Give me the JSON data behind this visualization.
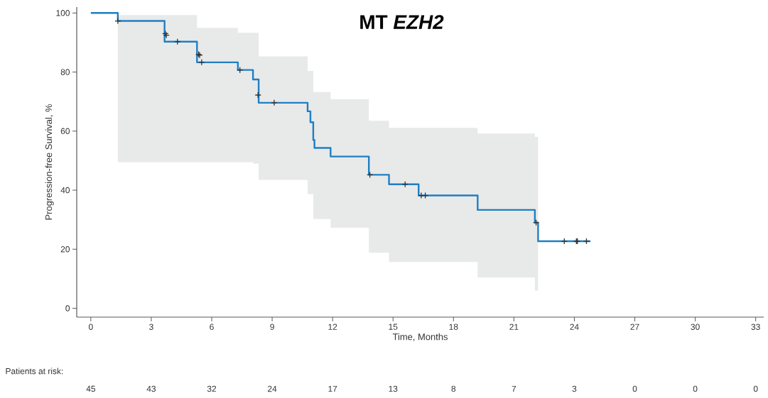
{
  "chart_data": {
    "type": "step",
    "title": "MT *EZH2*",
    "xlabel": "Time, Months",
    "ylabel": "Progression-free Survival, %",
    "xlim": [
      -0.7,
      33.4
    ],
    "ylim": [
      -3,
      102
    ],
    "xticks": [
      0,
      3,
      6,
      9,
      12,
      15,
      18,
      21,
      24,
      27,
      30,
      33
    ],
    "yticks": [
      0,
      20,
      40,
      60,
      80,
      100
    ],
    "grid": false,
    "series": [
      {
        "color": "#1f7fc4",
        "marker": "none",
        "x": [
          0,
          1.34,
          1.34,
          3.66,
          3.66,
          5.27,
          5.27,
          7.3,
          7.3,
          8.05,
          8.05,
          8.33,
          8.33,
          10.76,
          10.76,
          10.9,
          10.9,
          11.04,
          11.04,
          11.1,
          11.1,
          11.9,
          11.9,
          13.8,
          13.8,
          14.8,
          14.8,
          16.27,
          16.27,
          19.2,
          19.2,
          22.04,
          22.04,
          22.2,
          22.2,
          24.8
        ],
        "values": [
          100,
          100,
          97.3,
          97.3,
          90.3,
          90.3,
          83.3,
          83.3,
          80.7,
          80.7,
          77.5,
          77.5,
          69.6,
          69.6,
          66.7,
          66.7,
          63,
          63,
          57,
          57,
          54.3,
          54.3,
          51.4,
          51.4,
          45.2,
          45.2,
          42,
          42,
          38.2,
          38.2,
          33.3,
          33.3,
          29,
          29,
          22.7,
          22.7
        ],
        "upper": [
          null,
          null,
          99.3,
          99.3,
          99.3,
          99.3,
          95,
          95,
          93.3,
          93.3,
          93.3,
          93.3,
          85.3,
          85.3,
          80.4,
          80.4,
          80.4,
          80.4,
          73.2,
          73.2,
          73.2,
          73.2,
          70.8,
          70.8,
          63.5,
          63.5,
          61.1,
          61.1,
          61.1,
          61.1,
          59.2,
          59.2,
          58,
          58,
          null,
          null
        ],
        "lower": [
          null,
          null,
          49.5,
          49.5,
          49.5,
          49.5,
          49.5,
          49.5,
          49.5,
          49.5,
          49,
          49,
          43.5,
          43.5,
          38.6,
          38.6,
          38.6,
          38.6,
          30.2,
          30.2,
          30.2,
          30.2,
          27.3,
          27.3,
          18.8,
          18.8,
          15.7,
          15.7,
          15.7,
          15.7,
          10.4,
          10.4,
          6,
          6,
          null,
          null
        ]
      },
      {
        "type": "scatter",
        "color": "#333333",
        "marker": "cross",
        "x": [
          1.34,
          3.7,
          3.75,
          4.3,
          5.35,
          5.4,
          5.5,
          7.4,
          8.3,
          9.1,
          13.85,
          15.6,
          16.4,
          16.6,
          22.1,
          23.5,
          24.1,
          24.15,
          24.6
        ],
        "values": [
          97.3,
          93,
          92.5,
          90.3,
          86,
          85.7,
          83.3,
          80.7,
          72.2,
          69.6,
          45.2,
          42,
          38.2,
          38.2,
          29,
          22.7,
          22.7,
          22.7,
          22.7
        ]
      }
    ],
    "annotations": [
      "Patients at risk:",
      "45",
      "43",
      "32",
      "24",
      "17",
      "13",
      "8",
      "7",
      "3",
      "0",
      "0",
      "0"
    ]
  }
}
